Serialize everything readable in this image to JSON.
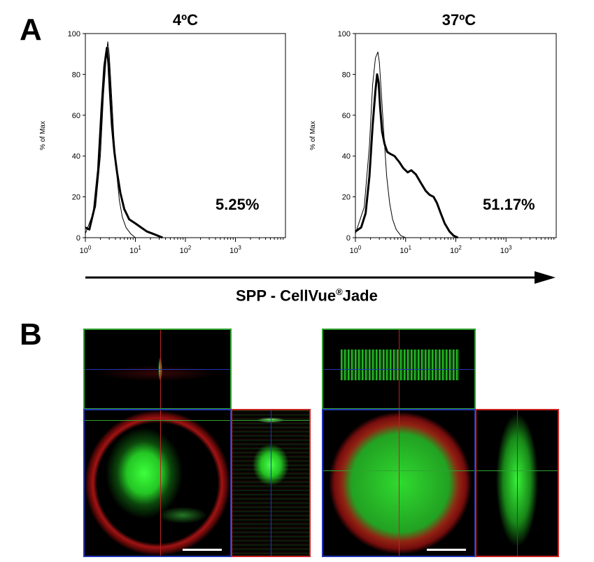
{
  "panels": {
    "a": "A",
    "b": "B"
  },
  "xaxis_label_main": "SPP - CellVue",
  "xaxis_label_sup": "®",
  "xaxis_label_tail": "Jade",
  "chart_data": [
    {
      "type": "line",
      "title": "4ºC",
      "ylabel": "% of Max",
      "xscale": "log",
      "xlim": [
        1,
        10000
      ],
      "ylim": [
        0,
        100
      ],
      "yticks": [
        0,
        20,
        40,
        60,
        80,
        100
      ],
      "xtick_bases": [
        "10",
        "10",
        "10",
        "10"
      ],
      "xtick_exps": [
        "0",
        "1",
        "2",
        "3"
      ],
      "annotation": "5.25%",
      "series": [
        {
          "style": "thin",
          "x": [
            1.0,
            1.6,
            2.0,
            2.3,
            2.6,
            2.8,
            3.0,
            3.3,
            3.7,
            4.2,
            4.8,
            5.5,
            6.5,
            8.0,
            10.0
          ],
          "y": [
            2,
            15,
            40,
            70,
            88,
            96,
            90,
            72,
            50,
            32,
            18,
            10,
            5,
            2,
            0
          ]
        },
        {
          "style": "thick",
          "x": [
            1.0,
            1.2,
            1.5,
            1.8,
            2.1,
            2.4,
            2.7,
            2.9,
            3.1,
            3.4,
            3.8,
            4.3,
            5.0,
            6.0,
            7.5,
            10.0,
            13.0,
            17.0,
            22.0,
            28.0,
            35.0
          ],
          "y": [
            5,
            4,
            14,
            33,
            62,
            84,
            93,
            85,
            72,
            55,
            42,
            32,
            22,
            14,
            9,
            7,
            5,
            3,
            2,
            1,
            0
          ]
        }
      ]
    },
    {
      "type": "line",
      "title": "37ºC",
      "ylabel": "% of Max",
      "xscale": "log",
      "xlim": [
        1,
        10000
      ],
      "ylim": [
        0,
        100
      ],
      "yticks": [
        0,
        20,
        40,
        60,
        80,
        100
      ],
      "xtick_bases": [
        "10",
        "10",
        "10",
        "10"
      ],
      "xtick_exps": [
        "0",
        "1",
        "2",
        "3"
      ],
      "annotation": "51.17%",
      "series": [
        {
          "style": "thin",
          "x": [
            1.0,
            1.5,
            1.9,
            2.2,
            2.5,
            2.8,
            3.0,
            3.3,
            3.7,
            4.2,
            4.8,
            5.5,
            6.5,
            8.0,
            10.0
          ],
          "y": [
            2,
            15,
            45,
            75,
            88,
            91,
            86,
            70,
            50,
            30,
            17,
            9,
            4,
            1,
            0
          ]
        },
        {
          "style": "thick",
          "x": [
            1.0,
            1.3,
            1.6,
            1.9,
            2.2,
            2.5,
            2.7,
            2.9,
            3.1,
            3.4,
            3.8,
            4.3,
            5.0,
            6.0,
            7.5,
            9.0,
            11.0,
            13.0,
            16.0,
            20.0,
            25.0,
            30.0,
            36.0,
            42.0,
            50.0,
            60.0,
            75.0,
            90.0,
            110.0
          ],
          "y": [
            3,
            5,
            12,
            30,
            55,
            72,
            80,
            76,
            64,
            52,
            46,
            42,
            41,
            40,
            37,
            34,
            32,
            33,
            31,
            27,
            23,
            21,
            20,
            17,
            12,
            7,
            3,
            1,
            0
          ]
        }
      ]
    }
  ]
}
